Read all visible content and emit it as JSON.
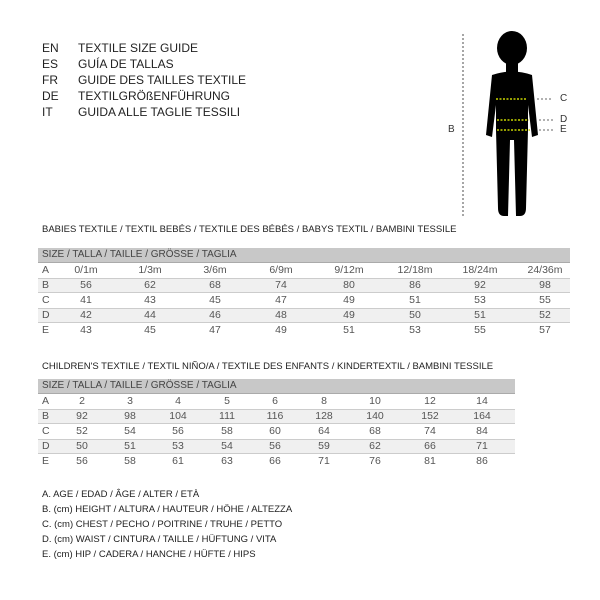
{
  "languages": [
    {
      "code": "EN",
      "text": "TEXTILE SIZE GUIDE"
    },
    {
      "code": "ES",
      "text": "GUÍA DE TALLAS"
    },
    {
      "code": "FR",
      "text": "GUIDE DES TAILLES TEXTILE"
    },
    {
      "code": "DE",
      "text": "TEXTILGRÖßENFÜHRUNG"
    },
    {
      "code": "IT",
      "text": "GUIDA ALLE TAGLIE TESSILI"
    }
  ],
  "figure": {
    "labels": {
      "b": "B",
      "c": "C",
      "d": "D",
      "e": "E"
    },
    "measure_line_color": "#c8d400"
  },
  "babies": {
    "title": "BABIES TEXTILE / TEXTIL BEBÉS / TEXTILE DES BÉBÉS / BABYS TEXTIL  / BAMBINI TESSILE",
    "header": "SIZE / TALLA / TAILLE / GRÖSSE / TAGLIA",
    "rows": [
      {
        "label": "A",
        "values": [
          "0/1m",
          "1/3m",
          "3/6m",
          "6/9m",
          "9/12m",
          "12/18m",
          "18/24m",
          "24/36m"
        ]
      },
      {
        "label": "B",
        "values": [
          "56",
          "62",
          "68",
          "74",
          "80",
          "86",
          "92",
          "98"
        ]
      },
      {
        "label": "C",
        "values": [
          "41",
          "43",
          "45",
          "47",
          "49",
          "51",
          "53",
          "55"
        ]
      },
      {
        "label": "D",
        "values": [
          "42",
          "44",
          "46",
          "48",
          "49",
          "50",
          "51",
          "52"
        ]
      },
      {
        "label": "E",
        "values": [
          "43",
          "45",
          "47",
          "49",
          "51",
          "53",
          "55",
          "57"
        ]
      }
    ]
  },
  "children": {
    "title": "CHILDREN'S TEXTILE / TEXTIL NIÑO/A / TEXTILE DES ENFANTS / KINDERTEXTIL / BAMBINI TESSILE",
    "header": "SIZE / TALLA / TAILLE / GRÖSSE / TAGLIA",
    "rows": [
      {
        "label": "A",
        "values": [
          "2",
          "3",
          "4",
          "5",
          "6",
          "8",
          "10",
          "12",
          "14"
        ]
      },
      {
        "label": "B",
        "values": [
          "92",
          "98",
          "104",
          "111",
          "116",
          "128",
          "140",
          "152",
          "164"
        ]
      },
      {
        "label": "C",
        "values": [
          "52",
          "54",
          "56",
          "58",
          "60",
          "64",
          "68",
          "74",
          "84"
        ]
      },
      {
        "label": "D",
        "values": [
          "50",
          "51",
          "53",
          "54",
          "56",
          "59",
          "62",
          "66",
          "71"
        ]
      },
      {
        "label": "E",
        "values": [
          "56",
          "58",
          "61",
          "63",
          "66",
          "71",
          "76",
          "81",
          "86"
        ]
      }
    ]
  },
  "legend": [
    "A. AGE / EDAD / ÂGE / ALTER / ETÀ",
    "B. (cm) HEIGHT / ALTURA / HAUTEUR / HÖHE / ALTEZZA",
    "C. (cm) CHEST / PECHO / POITRINE / TRUHE / PETTO",
    "D. (cm) WAIST / CINTURA / TAILLE / HÜFTUNG / VITA",
    "E. (cm) HIP / CADERA / HANCHE / HÜFTE / HIPS"
  ]
}
